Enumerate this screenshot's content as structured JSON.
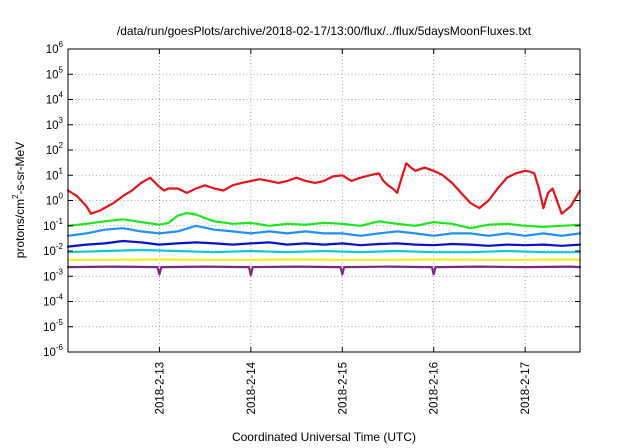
{
  "chart_data": {
    "type": "line",
    "title": "/data/run/goesPlots/archive/2018-02-17/13:00/flux/../flux/5daysMoonFluxes.txt",
    "xlabel": "Coordinated Universal Time (UTC)",
    "ylabel": "protons/cm²-s-sr-MeV",
    "ylabel_parts": {
      "pre": "protons/cm",
      "sup": "2",
      "post": "-s-sr-MeV"
    },
    "yscale": "log",
    "ylim": [
      1e-06,
      1000000.0
    ],
    "xlim": [
      0,
      5.6
    ],
    "y_ticks": [
      {
        "base": "10",
        "exp": "6"
      },
      {
        "base": "10",
        "exp": "5"
      },
      {
        "base": "10",
        "exp": "4"
      },
      {
        "base": "10",
        "exp": "3"
      },
      {
        "base": "10",
        "exp": "2"
      },
      {
        "base": "10",
        "exp": "1"
      },
      {
        "base": "10",
        "exp": "0"
      },
      {
        "base": "10",
        "exp": "-1"
      },
      {
        "base": "10",
        "exp": "-2"
      },
      {
        "base": "10",
        "exp": "-3"
      },
      {
        "base": "10",
        "exp": "-4"
      },
      {
        "base": "10",
        "exp": "-5"
      },
      {
        "base": "10",
        "exp": "-6"
      }
    ],
    "x_ticks": [
      {
        "pos": 1,
        "label": "2018-2-13"
      },
      {
        "pos": 2,
        "label": "2018-2-14"
      },
      {
        "pos": 3,
        "label": "2018-2-15"
      },
      {
        "pos": 4,
        "label": "2018-2-16"
      },
      {
        "pos": 5,
        "label": "2018-2-17"
      }
    ],
    "grid": true,
    "series": [
      {
        "color": "#e8121a",
        "x": [
          0,
          0.1,
          0.2,
          0.25,
          0.35,
          0.5,
          0.6,
          0.7,
          0.8,
          0.9,
          0.98,
          1.05,
          1.1,
          1.2,
          1.3,
          1.4,
          1.5,
          1.6,
          1.7,
          1.8,
          1.9,
          2.0,
          2.1,
          2.2,
          2.3,
          2.4,
          2.5,
          2.6,
          2.7,
          2.8,
          2.9,
          3.0,
          3.1,
          3.2,
          3.3,
          3.4,
          3.45,
          3.5,
          3.55,
          3.6,
          3.65,
          3.7,
          3.75,
          3.8,
          3.9,
          4.0,
          4.1,
          4.2,
          4.3,
          4.4,
          4.5,
          4.6,
          4.7,
          4.8,
          4.9,
          5.0,
          5.05,
          5.1,
          5.15,
          5.2,
          5.25,
          5.3,
          5.4,
          5.5,
          5.6
        ],
        "y": [
          2.5,
          1.5,
          0.6,
          0.3,
          0.4,
          0.8,
          1.5,
          2.5,
          5,
          8,
          4,
          2.5,
          3,
          3,
          2,
          3,
          4,
          3,
          2.5,
          4,
          5,
          6,
          7,
          6,
          5,
          6,
          8,
          6,
          5,
          6,
          9,
          10,
          6,
          8,
          10,
          12,
          6,
          4,
          3,
          2,
          8,
          30,
          20,
          15,
          20,
          15,
          10,
          5,
          2,
          0.8,
          0.5,
          1,
          3,
          8,
          12,
          15,
          14,
          12,
          3,
          0.5,
          2,
          3,
          0.3,
          0.6,
          2.5
        ]
      },
      {
        "color": "#1ae81a",
        "x": [
          0,
          0.2,
          0.4,
          0.6,
          0.8,
          1.0,
          1.1,
          1.2,
          1.3,
          1.4,
          1.5,
          1.6,
          1.8,
          2.0,
          2.2,
          2.4,
          2.6,
          2.8,
          3.0,
          3.2,
          3.4,
          3.6,
          3.8,
          4.0,
          4.2,
          4.4,
          4.6,
          4.8,
          5.0,
          5.2,
          5.4,
          5.6
        ],
        "y": [
          0.1,
          0.12,
          0.15,
          0.18,
          0.14,
          0.11,
          0.13,
          0.25,
          0.32,
          0.28,
          0.2,
          0.15,
          0.12,
          0.13,
          0.1,
          0.12,
          0.11,
          0.13,
          0.12,
          0.1,
          0.15,
          0.12,
          0.1,
          0.14,
          0.12,
          0.08,
          0.11,
          0.12,
          0.1,
          0.09,
          0.1,
          0.11
        ]
      },
      {
        "color": "#1e90ff",
        "x": [
          0,
          0.2,
          0.4,
          0.6,
          0.8,
          1.0,
          1.2,
          1.4,
          1.6,
          1.8,
          2.0,
          2.2,
          2.4,
          2.6,
          2.8,
          3.0,
          3.2,
          3.4,
          3.6,
          3.8,
          4.0,
          4.2,
          4.4,
          4.6,
          4.8,
          5.0,
          5.2,
          5.4,
          5.6
        ],
        "y": [
          0.04,
          0.05,
          0.07,
          0.08,
          0.06,
          0.05,
          0.06,
          0.1,
          0.07,
          0.06,
          0.05,
          0.06,
          0.05,
          0.06,
          0.05,
          0.05,
          0.04,
          0.05,
          0.06,
          0.05,
          0.04,
          0.05,
          0.05,
          0.04,
          0.05,
          0.04,
          0.05,
          0.04,
          0.05
        ]
      },
      {
        "color": "#0a10d0",
        "x": [
          0,
          0.2,
          0.4,
          0.6,
          0.8,
          1.0,
          1.2,
          1.4,
          1.6,
          1.8,
          2.0,
          2.2,
          2.4,
          2.6,
          2.8,
          3.0,
          3.2,
          3.4,
          3.6,
          3.8,
          4.0,
          4.2,
          4.4,
          4.6,
          4.8,
          5.0,
          5.2,
          5.4,
          5.6
        ],
        "y": [
          0.015,
          0.018,
          0.02,
          0.025,
          0.022,
          0.018,
          0.02,
          0.022,
          0.02,
          0.018,
          0.02,
          0.022,
          0.018,
          0.02,
          0.018,
          0.02,
          0.017,
          0.019,
          0.02,
          0.018,
          0.017,
          0.019,
          0.018,
          0.016,
          0.018,
          0.017,
          0.018,
          0.016,
          0.018
        ]
      },
      {
        "color": "#10c8d8",
        "x": [
          0,
          0.4,
          0.8,
          1.2,
          1.6,
          2.0,
          2.4,
          2.8,
          3.2,
          3.6,
          4.0,
          4.4,
          4.8,
          5.2,
          5.6
        ],
        "y": [
          0.009,
          0.01,
          0.011,
          0.01,
          0.009,
          0.01,
          0.009,
          0.01,
          0.009,
          0.01,
          0.009,
          0.009,
          0.01,
          0.009,
          0.009
        ]
      },
      {
        "color": "#f0f020",
        "x": [
          0,
          0.5,
          1.0,
          1.5,
          2.0,
          2.5,
          3.0,
          3.5,
          4.0,
          4.5,
          5.0,
          5.5,
          5.6
        ],
        "y": [
          0.0045,
          0.0045,
          0.0046,
          0.0045,
          0.0045,
          0.0046,
          0.0045,
          0.0045,
          0.0046,
          0.0045,
          0.0045,
          0.0046,
          0.0045
        ]
      },
      {
        "color": "#7b2a7b",
        "x": [
          0,
          0.5,
          0.98,
          1.0,
          1.02,
          1.5,
          1.98,
          2.0,
          2.02,
          2.5,
          2.98,
          3.0,
          3.02,
          3.5,
          3.98,
          4.0,
          4.02,
          4.5,
          5.0,
          5.5,
          5.6
        ],
        "y": [
          0.0023,
          0.0024,
          0.0023,
          0.0012,
          0.0023,
          0.0024,
          0.0023,
          0.0011,
          0.0023,
          0.0024,
          0.0023,
          0.0012,
          0.0023,
          0.0024,
          0.0023,
          0.0012,
          0.0023,
          0.0024,
          0.0023,
          0.0024,
          0.0023
        ]
      }
    ]
  }
}
